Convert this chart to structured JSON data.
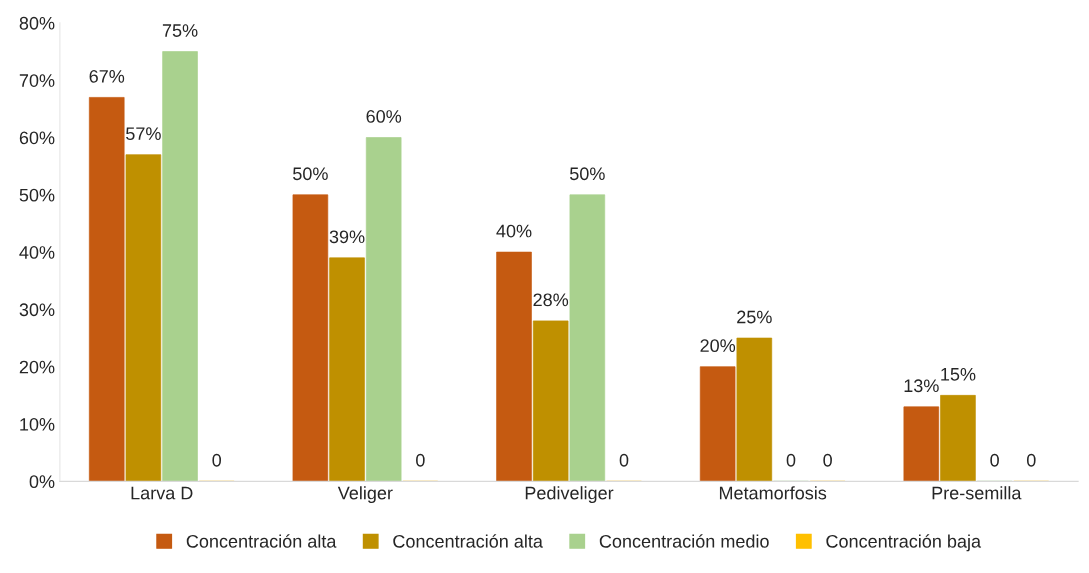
{
  "chart_data": {
    "type": "bar",
    "categories": [
      "Larva D",
      "Veliger",
      "Pediveliger",
      "Metamorfosis",
      "Pre-semilla"
    ],
    "series": [
      {
        "name": "Concentración alta",
        "color": "#c55a11",
        "values": [
          67,
          50,
          40,
          20,
          13
        ],
        "value_labels": [
          "67%",
          "50%",
          "40%",
          "20%",
          "13%"
        ]
      },
      {
        "name": "Concentración alta",
        "color": "#bf9000",
        "values": [
          57,
          39,
          28,
          25,
          15
        ],
        "value_labels": [
          "57%",
          "39%",
          "28%",
          "25%",
          "15%"
        ]
      },
      {
        "name": "Concentración medio",
        "color": "#a9d18e",
        "values": [
          75,
          60,
          50,
          0,
          0
        ],
        "value_labels": [
          "75%",
          "60%",
          "50%",
          "0",
          "0"
        ]
      },
      {
        "name": "Concentración baja",
        "color": "#ffc000",
        "values": [
          0,
          0,
          0,
          0,
          0
        ],
        "value_labels": [
          "0",
          "0",
          "0",
          "0",
          "0"
        ]
      }
    ],
    "ylim": [
      0,
      80
    ],
    "yticks": [
      {
        "value": 0,
        "label": "0%"
      },
      {
        "value": 10,
        "label": "10%"
      },
      {
        "value": 20,
        "label": "20%"
      },
      {
        "value": 30,
        "label": "30%"
      },
      {
        "value": 40,
        "label": "40%"
      },
      {
        "value": 50,
        "label": "50%"
      },
      {
        "value": 60,
        "label": "60%"
      },
      {
        "value": 70,
        "label": "70%"
      },
      {
        "value": 80,
        "label": "80%"
      }
    ],
    "grid": false,
    "legend": "bottom"
  }
}
